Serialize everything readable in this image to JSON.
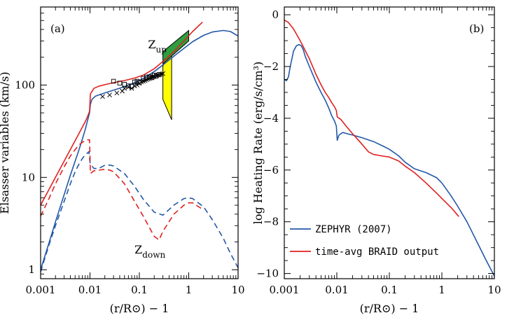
{
  "colors": {
    "blue": "#2358a8",
    "red": "#e02020",
    "yellow": "#ffff00",
    "green": "#2e9e3e",
    "axis": "#000000"
  },
  "chart_data": [
    {
      "type": "line",
      "panel_label": "(a)",
      "xlabel": "(r/R⊙) − 1",
      "ylabel": "Elsasser variables (km/s)",
      "xscale": "log",
      "yscale": "log",
      "xlim": [
        0.001,
        10
      ],
      "ylim": [
        0.8,
        700
      ],
      "xticks": [
        {
          "value": 0.001,
          "label": "0.001"
        },
        {
          "value": 0.01,
          "label": "0.01"
        },
        {
          "value": 0.1,
          "label": "0.1"
        },
        {
          "value": 1,
          "label": "1"
        },
        {
          "value": 10,
          "label": "10"
        }
      ],
      "yticks": [
        {
          "value": 1,
          "label": "1"
        },
        {
          "value": 10,
          "label": "10"
        },
        {
          "value": 100,
          "label": "100"
        }
      ],
      "annotations": [
        {
          "text": "Z",
          "sub": "up",
          "x": 0.15,
          "y": 250
        },
        {
          "text": "Z",
          "sub": "down",
          "x": 0.08,
          "y": 1.5
        }
      ],
      "series": [
        {
          "id": "zup-blue",
          "color": "blue",
          "dash": false,
          "x": [
            0.001,
            0.0015,
            0.002,
            0.003,
            0.004,
            0.005,
            0.006,
            0.007,
            0.008,
            0.009,
            0.0098,
            0.0102,
            0.011,
            0.013,
            0.016,
            0.02,
            0.03,
            0.05,
            0.08,
            0.12,
            0.2,
            0.3,
            0.5,
            0.8,
            1.2,
            2,
            3,
            5,
            7,
            10
          ],
          "y": [
            1.0,
            2.0,
            3.3,
            6.5,
            10.5,
            15.0,
            20.0,
            26.0,
            33.0,
            42.0,
            50.0,
            62.0,
            70.0,
            76.0,
            79.0,
            82.0,
            88.0,
            96.0,
            106.0,
            118.0,
            140.0,
            165.0,
            205.0,
            250.0,
            295.0,
            345.0,
            375.0,
            390.0,
            380.0,
            340.0
          ]
        },
        {
          "id": "zup-red",
          "color": "red",
          "dash": false,
          "x": [
            0.001,
            0.0015,
            0.002,
            0.003,
            0.004,
            0.005,
            0.006,
            0.007,
            0.008,
            0.009,
            0.0098,
            0.0102,
            0.012,
            0.015,
            0.02,
            0.03,
            0.05,
            0.08,
            0.12,
            0.2,
            0.3,
            0.5,
            0.8,
            1.2,
            1.9
          ],
          "y": [
            5.0,
            7.5,
            10.0,
            15.0,
            20.0,
            25.0,
            30.0,
            35.0,
            40.0,
            46.0,
            52.0,
            80.0,
            92.0,
            97.0,
            101.0,
            106.0,
            112.0,
            119.0,
            128.0,
            150.0,
            180.0,
            230.0,
            300.0,
            380.0,
            480.0
          ]
        },
        {
          "id": "zdown-blue",
          "color": "blue",
          "dash": true,
          "x": [
            0.001,
            0.0015,
            0.002,
            0.003,
            0.004,
            0.005,
            0.006,
            0.007,
            0.008,
            0.009,
            0.0095,
            0.0101,
            0.012,
            0.015,
            0.02,
            0.025,
            0.03,
            0.05,
            0.08,
            0.12,
            0.2,
            0.3,
            0.5,
            0.8,
            1.0,
            1.2,
            2,
            3,
            5,
            7,
            10
          ],
          "y": [
            0.95,
            1.9,
            3.0,
            5.5,
            8.5,
            11.5,
            14.0,
            16.0,
            17.5,
            18.5,
            19.0,
            14.0,
            12.5,
            12.5,
            13.5,
            13.6,
            13.3,
            11.0,
            8.0,
            5.8,
            4.2,
            3.9,
            5.0,
            5.9,
            6.0,
            5.9,
            4.8,
            3.5,
            2.2,
            1.5,
            1.05
          ]
        },
        {
          "id": "zdown-red",
          "color": "red",
          "dash": true,
          "x": [
            0.001,
            0.0015,
            0.002,
            0.003,
            0.004,
            0.005,
            0.006,
            0.007,
            0.008,
            0.009,
            0.0098,
            0.0102,
            0.012,
            0.015,
            0.02,
            0.025,
            0.03,
            0.05,
            0.08,
            0.12,
            0.2,
            0.25,
            0.3,
            0.5,
            0.8,
            1.0,
            1.2,
            1.8
          ],
          "y": [
            3.8,
            6.0,
            8.5,
            13.0,
            17.0,
            20.0,
            22.5,
            24.0,
            25.0,
            25.5,
            25.5,
            11.0,
            11.8,
            12.0,
            12.2,
            12.0,
            11.5,
            8.5,
            5.5,
            3.8,
            2.3,
            2.1,
            2.6,
            4.0,
            5.0,
            5.3,
            5.3,
            4.6
          ]
        }
      ],
      "observations": {
        "squares": {
          "x": [
            0.03,
            0.04,
            0.05,
            0.06,
            0.07,
            0.08,
            0.09,
            0.1,
            0.12,
            0.14,
            0.16,
            0.18,
            0.2,
            0.22,
            0.25
          ],
          "y": [
            110,
            105,
            102,
            98,
            97,
            108,
            110,
            107,
            118,
            122,
            123,
            120,
            128,
            125,
            130
          ]
        },
        "crosses": {
          "x": [
            0.018,
            0.025,
            0.035,
            0.045,
            0.05,
            0.06,
            0.07,
            0.08,
            0.09,
            0.1,
            0.11,
            0.12,
            0.13,
            0.14,
            0.15,
            0.16,
            0.17,
            0.18,
            0.19,
            0.2,
            0.22,
            0.24,
            0.26,
            0.28,
            0.3
          ],
          "y": [
            75,
            78,
            82,
            86,
            92,
            95,
            92,
            98,
            100,
            104,
            108,
            110,
            112,
            114,
            116,
            118,
            120,
            121,
            123,
            124,
            126,
            128,
            130,
            131,
            133
          ]
        }
      },
      "regions": [
        {
          "id": "yellow-region",
          "color": "yellow",
          "x": [
            0.3,
            0.3,
            0.45,
            0.45
          ],
          "y": [
            160,
            70,
            42,
            260
          ]
        },
        {
          "id": "green-region",
          "color": "green",
          "x": [
            0.3,
            0.3,
            1.0,
            1.0
          ],
          "y": [
            170,
            230,
            390,
            300
          ]
        }
      ]
    },
    {
      "type": "line",
      "panel_label": "(b)",
      "xlabel": "(r/R⊙) − 1",
      "ylabel": "log Heating Rate (erg/s/cm³)",
      "xscale": "log",
      "yscale": "linear",
      "xlim": [
        0.001,
        10
      ],
      "ylim": [
        -10.2,
        0.3
      ],
      "xticks": [
        {
          "value": 0.001,
          "label": "0.001"
        },
        {
          "value": 0.01,
          "label": "0.01"
        },
        {
          "value": 0.1,
          "label": "0.1"
        },
        {
          "value": 1,
          "label": "1"
        },
        {
          "value": 10,
          "label": "10"
        }
      ],
      "yticks": [
        {
          "value": 0,
          "label": "0"
        },
        {
          "value": -2,
          "label": "−2"
        },
        {
          "value": -4,
          "label": "−4"
        },
        {
          "value": -6,
          "label": "−6"
        },
        {
          "value": -8,
          "label": "−8"
        },
        {
          "value": -10,
          "label": "−10"
        }
      ],
      "legend_position": "bottom-left",
      "series": [
        {
          "id": "zephyr",
          "name": "ZEPHYR (2007)",
          "color": "blue",
          "dash": false,
          "x": [
            0.001,
            0.0011,
            0.0012,
            0.0013,
            0.0015,
            0.0017,
            0.0019,
            0.0021,
            0.0023,
            0.0025,
            0.003,
            0.004,
            0.005,
            0.006,
            0.007,
            0.008,
            0.009,
            0.0098,
            0.0102,
            0.011,
            0.013,
            0.016,
            0.02,
            0.03,
            0.05,
            0.08,
            0.1,
            0.15,
            0.2,
            0.3,
            0.5,
            0.8,
            1.0,
            1.5,
            2,
            3,
            5,
            7,
            10
          ],
          "y": [
            -2.5,
            -2.55,
            -2.4,
            -2.0,
            -1.4,
            -1.2,
            -1.15,
            -1.2,
            -1.35,
            -1.6,
            -2.0,
            -2.6,
            -3.0,
            -3.3,
            -3.6,
            -3.9,
            -4.1,
            -4.3,
            -4.85,
            -4.65,
            -4.55,
            -4.6,
            -4.65,
            -4.75,
            -4.9,
            -5.1,
            -5.2,
            -5.45,
            -5.7,
            -5.95,
            -6.1,
            -6.3,
            -6.5,
            -7.0,
            -7.4,
            -8.0,
            -8.9,
            -9.5,
            -10.1
          ]
        },
        {
          "id": "braid",
          "name": "time-avg BRAID output",
          "color": "red",
          "dash": false,
          "x": [
            0.001,
            0.0012,
            0.0015,
            0.002,
            0.003,
            0.004,
            0.005,
            0.006,
            0.007,
            0.008,
            0.009,
            0.0098,
            0.0102,
            0.012,
            0.015,
            0.02,
            0.03,
            0.04,
            0.05,
            0.07,
            0.1,
            0.15,
            0.2,
            0.3,
            0.5,
            0.8,
            1.0,
            1.5,
            2.1
          ],
          "y": [
            -0.2,
            -0.3,
            -0.55,
            -1.0,
            -1.7,
            -2.3,
            -2.7,
            -3.0,
            -3.2,
            -3.4,
            -3.55,
            -3.7,
            -3.95,
            -4.05,
            -4.3,
            -4.6,
            -5.0,
            -5.3,
            -5.4,
            -5.45,
            -5.5,
            -5.65,
            -5.85,
            -6.1,
            -6.5,
            -6.9,
            -7.1,
            -7.45,
            -7.8
          ]
        }
      ]
    }
  ]
}
